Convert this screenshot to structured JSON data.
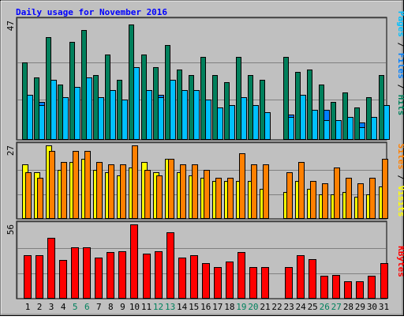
{
  "chart_data": {
    "title": "Daily usage for November 2016",
    "type": "bar",
    "days": [
      "1",
      "2",
      "3",
      "4",
      "5",
      "6",
      "7",
      "8",
      "9",
      "10",
      "11",
      "12",
      "13",
      "14",
      "15",
      "16",
      "17",
      "18",
      "19",
      "20",
      "21",
      "22",
      "23",
      "24",
      "25",
      "26",
      "27",
      "28",
      "29",
      "30",
      "31"
    ],
    "weekend_days": [
      5,
      6,
      12,
      13,
      19,
      20,
      26,
      27
    ],
    "colors": {
      "hits": "#00805c",
      "files": "#0080ff",
      "pages": "#00c0ff",
      "visits": "#ffff00",
      "sites": "#ff8000",
      "kbytes": "#ff0000",
      "title": "#0000ff",
      "weekend_label": "#00805c",
      "background": "#c0c0c0"
    },
    "panels": [
      {
        "id": "hits-files-pages",
        "ymax_label": "47",
        "ymax": 47,
        "gridlines": [
          16,
          31
        ],
        "series": [
          {
            "name": "Hits",
            "values": [
              31,
              25,
              41,
              22,
              39,
              44,
              26,
              34,
              24,
              46,
              34,
              29,
              38,
              28,
              26,
              33,
              26,
              23,
              33,
              26,
              24,
              null,
              33,
              27,
              28,
              22,
              15,
              19,
              13,
              17,
              26
            ]
          },
          {
            "name": "Files",
            "values": [
              18,
              15,
              21,
              17,
              20,
              22,
              17,
              20,
              16,
              24,
              19,
              18,
              21,
              19,
              18,
              16,
              13,
              14,
              16,
              14,
              11,
              null,
              10,
              18,
              11,
              12,
              8,
              9,
              7,
              9,
              14
            ]
          },
          {
            "name": "Pages",
            "values": [
              18,
              14,
              24,
              17,
              21,
              25,
              17,
              20,
              16,
              29,
              20,
              17,
              24,
              20,
              20,
              16,
              13,
              14,
              17,
              14,
              11,
              null,
              9,
              18,
              12,
              8,
              8,
              9,
              5,
              9,
              14
            ]
          }
        ]
      },
      {
        "id": "visits-sites",
        "ymax_label": "27",
        "ymax": 27,
        "gridlines": [
          9,
          18
        ],
        "series": [
          {
            "name": "Visits",
            "values": [
              20,
              17,
              27,
              18,
              21,
              22,
              18,
              17,
              16,
              19,
              21,
              17,
              22,
              17,
              16,
              15,
              14,
              14,
              14,
              14,
              11,
              null,
              10,
              14,
              11,
              9,
              9,
              10,
              8,
              9,
              12
            ]
          },
          {
            "name": "Sites",
            "values": [
              17,
              15,
              25,
              21,
              25,
              25,
              21,
              20,
              20,
              27,
              18,
              16,
              22,
              20,
              20,
              18,
              15,
              15,
              24,
              20,
              20,
              null,
              17,
              21,
              14,
              13,
              19,
              15,
              13,
              15,
              22
            ]
          }
        ]
      },
      {
        "id": "kbytes",
        "ymax_label": "56",
        "ymax": 56,
        "gridlines": [
          19,
          38
        ],
        "series": [
          {
            "name": "KBytes",
            "values": [
              33,
              33,
              46,
              29,
              39,
              39,
              31,
              35,
              36,
              56,
              34,
              36,
              50,
              31,
              33,
              27,
              24,
              28,
              35,
              24,
              24,
              null,
              24,
              33,
              30,
              17,
              18,
              13,
              13,
              17,
              27
            ]
          }
        ]
      }
    ],
    "legend": [
      {
        "panel": "hits-files-pages",
        "entries": [
          {
            "text": "Pages",
            "color": "#00c0ff"
          },
          {
            "text": " / ",
            "color": "#000000"
          },
          {
            "text": "Files",
            "color": "#0080ff"
          },
          {
            "text": " / ",
            "color": "#000000"
          },
          {
            "text": "Hits",
            "color": "#00805c"
          }
        ]
      },
      {
        "panel": "visits-sites",
        "entries": [
          {
            "text": "Sites",
            "color": "#ff8000"
          },
          {
            "text": " / ",
            "color": "#000000"
          },
          {
            "text": "Visits",
            "color": "#ffff00"
          }
        ]
      },
      {
        "panel": "kbytes",
        "entries": [
          {
            "text": "KBytes",
            "color": "#ff0000"
          }
        ]
      }
    ],
    "grid": true
  }
}
